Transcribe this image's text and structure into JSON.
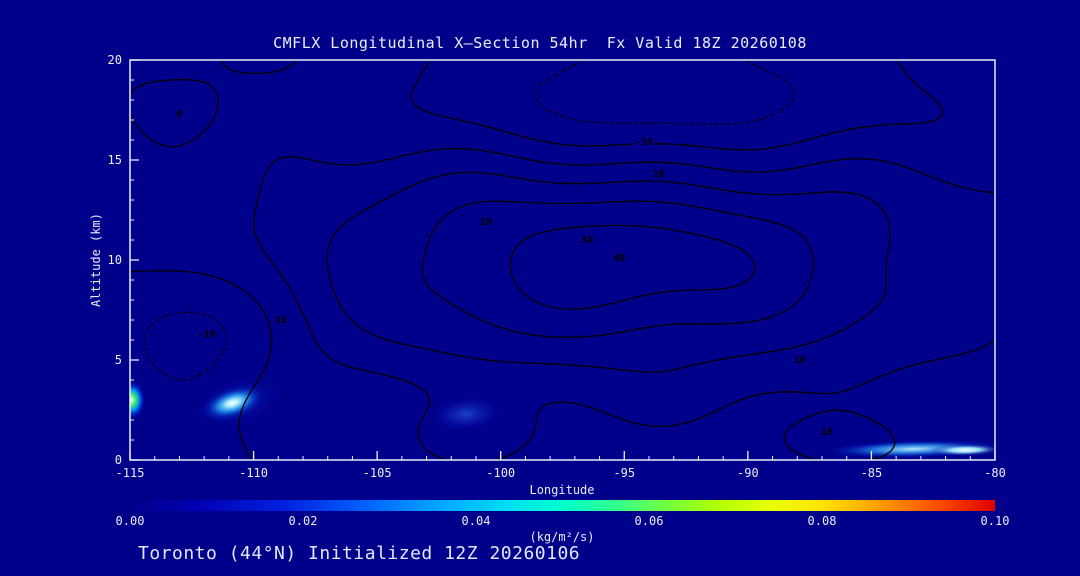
{
  "title": "CMFLX Longitudinal X—Section 54hr  Fx Valid 18Z 20260108",
  "footer": "Toronto (44°N) Initialized 12Z 20260106",
  "colors": {
    "page_bg": "#00008b",
    "plot_bg": "#00008b",
    "frame": "#e8eef8",
    "text": "#e8eef8",
    "contour": "#000000"
  },
  "axes": {
    "x": {
      "label": "Longitude",
      "min": -115,
      "max": -80,
      "major_ticks": [
        -115,
        -110,
        -105,
        -100,
        -95,
        -90,
        -85,
        -80
      ],
      "minor_step": 1
    },
    "y": {
      "label": "Altitude (km)",
      "min": 0,
      "max": 20,
      "major_ticks": [
        0,
        5,
        10,
        15,
        20
      ],
      "minor_step": 1
    }
  },
  "colorbar": {
    "units": "(kg/m²/s)",
    "min": 0.0,
    "max": 0.1,
    "tick_labels": [
      "0.00",
      "0.02",
      "0.04",
      "0.06",
      "0.08",
      "0.10"
    ],
    "stops": [
      [
        0,
        "#00008b"
      ],
      [
        0.08,
        "#0000b4"
      ],
      [
        0.18,
        "#0022e0"
      ],
      [
        0.28,
        "#0066ff"
      ],
      [
        0.36,
        "#00a8ff"
      ],
      [
        0.44,
        "#00e0f0"
      ],
      [
        0.5,
        "#00ffcc"
      ],
      [
        0.56,
        "#30ff90"
      ],
      [
        0.62,
        "#70ff40"
      ],
      [
        0.68,
        "#b0ff00"
      ],
      [
        0.74,
        "#e8ff00"
      ],
      [
        0.8,
        "#ffe400"
      ],
      [
        0.86,
        "#ffa400"
      ],
      [
        0.92,
        "#ff5e00"
      ],
      [
        1,
        "#e00000"
      ]
    ]
  },
  "chart_data": {
    "type": "contour",
    "title": "CMFLX Longitudinal X—Section 54hr  Fx Valid 18Z 20260108",
    "variable": "CMFLX",
    "forecast_hour": "54hr",
    "valid_time": "18Z 20260108",
    "init_time": "12Z 20260106",
    "station": "Toronto (44°N)",
    "xlabel": "Longitude",
    "ylabel": "Altitude (km)",
    "x_range": [
      -115,
      -80
    ],
    "y_range": [
      0,
      20
    ],
    "shading_units": "kg/m²/s",
    "shading_range": [
      0.0,
      0.1
    ],
    "contour_levels": [
      -10,
      0,
      10,
      20,
      30,
      40
    ],
    "negative_style": "dotted",
    "field_model": {
      "gaussians": [
        {
          "a": 34,
          "cx": -95.5,
          "sx": 8.0,
          "cy": 9.8,
          "sy": 3.6
        },
        {
          "a": 12,
          "cx": -95.0,
          "sx": 16.0,
          "cy": 10.0,
          "sy": 6.0
        },
        {
          "a": -26,
          "cx": -93.5,
          "sx": 5.5,
          "cy": 17.8,
          "sy": 2.4
        },
        {
          "a": -20,
          "cx": -112.5,
          "sx": 2.6,
          "cy": 6.5,
          "sy": 3.2
        },
        {
          "a": -8,
          "cx": -113.0,
          "sx": 1.6,
          "cy": 17.3,
          "sy": 1.2
        },
        {
          "a": 10,
          "cx": -101.0,
          "sx": 2.0,
          "cy": 1.3,
          "sy": 1.1
        },
        {
          "a": 10,
          "cx": -86.5,
          "sx": 2.2,
          "cy": 0.9,
          "sy": 0.9
        }
      ],
      "wobble": [
        {
          "a": 2.2,
          "fx": 0.8,
          "px": 1.0,
          "fy": 0.5,
          "py": 0.5
        },
        {
          "a": 1.8,
          "fx": 0.33,
          "px": 4.0,
          "fy": 0.9,
          "py": 2.0
        }
      ]
    },
    "contour_labels": [
      {
        "text": "0",
        "lon": -113.0,
        "alt": 17.3
      },
      {
        "text": "-10",
        "lon": -94.2,
        "alt": 15.9
      },
      {
        "text": "10",
        "lon": -93.6,
        "alt": 14.3
      },
      {
        "text": "20",
        "lon": -100.6,
        "alt": 11.9
      },
      {
        "text": "30",
        "lon": -96.5,
        "alt": 11.0
      },
      {
        "text": "40",
        "lon": -95.2,
        "alt": 10.1
      },
      {
        "text": "10",
        "lon": -108.9,
        "alt": 7.0
      },
      {
        "text": "-10",
        "lon": -111.9,
        "alt": 6.3
      },
      {
        "text": "10",
        "lon": -87.9,
        "alt": 5.0
      },
      {
        "text": "10",
        "lon": -86.8,
        "alt": 1.4
      }
    ],
    "shaded_features": [
      {
        "name": "left-edge-bright-cell",
        "lon": -114.95,
        "alt": 3.0,
        "rx_deg": 0.6,
        "ry_km": 1.0,
        "angle": 0,
        "stops": [
          [
            0,
            "#f0fff0",
            1
          ],
          [
            0.25,
            "#55ff55",
            0.95
          ],
          [
            0.5,
            "#00cfff",
            0.8
          ],
          [
            0.75,
            "#0044ff",
            0.45
          ],
          [
            1,
            "#0000a0",
            0
          ]
        ]
      },
      {
        "name": "comet-cell-halo",
        "lon": -110.6,
        "alt": 2.9,
        "rx_deg": 1.9,
        "ry_km": 1.3,
        "angle": -18,
        "stops": [
          [
            0,
            "#1a50d8",
            0.5
          ],
          [
            1,
            "#0000a0",
            0
          ]
        ]
      },
      {
        "name": "comet-bright-cell",
        "lon": -110.85,
        "alt": 2.85,
        "rx_deg": 1.35,
        "ry_km": 0.8,
        "angle": -18,
        "stops": [
          [
            0,
            "#ffffff",
            1
          ],
          [
            0.2,
            "#aef4ff",
            0.95
          ],
          [
            0.45,
            "#2fb4ff",
            0.75
          ],
          [
            0.7,
            "#0a50e0",
            0.4
          ],
          [
            1,
            "#0000a0",
            0
          ]
        ]
      },
      {
        "name": "mid-faint-cell",
        "lon": -101.4,
        "alt": 2.3,
        "rx_deg": 1.5,
        "ry_km": 0.9,
        "angle": -5,
        "stops": [
          [
            0,
            "#2a6cf0",
            0.6
          ],
          [
            0.5,
            "#1838c8",
            0.35
          ],
          [
            1,
            "#0000a0",
            0
          ]
        ]
      },
      {
        "name": "bottom-right-streak",
        "lon": -83.3,
        "alt": 0.55,
        "rx_deg": 3.6,
        "ry_km": 0.45,
        "angle": -1.5,
        "stops": [
          [
            0,
            "#bdf6ff",
            0.95
          ],
          [
            0.45,
            "#2fa8ff",
            0.7
          ],
          [
            0.75,
            "#0a40d0",
            0.35
          ],
          [
            1,
            "#0000a0",
            0
          ]
        ]
      },
      {
        "name": "bottom-right-streak-core",
        "lon": -81.2,
        "alt": 0.5,
        "rx_deg": 1.5,
        "ry_km": 0.3,
        "angle": -1,
        "stops": [
          [
            0,
            "#ffffff",
            1
          ],
          [
            0.4,
            "#9ef0ff",
            0.9
          ],
          [
            1,
            "#0000a0",
            0
          ]
        ]
      }
    ]
  }
}
